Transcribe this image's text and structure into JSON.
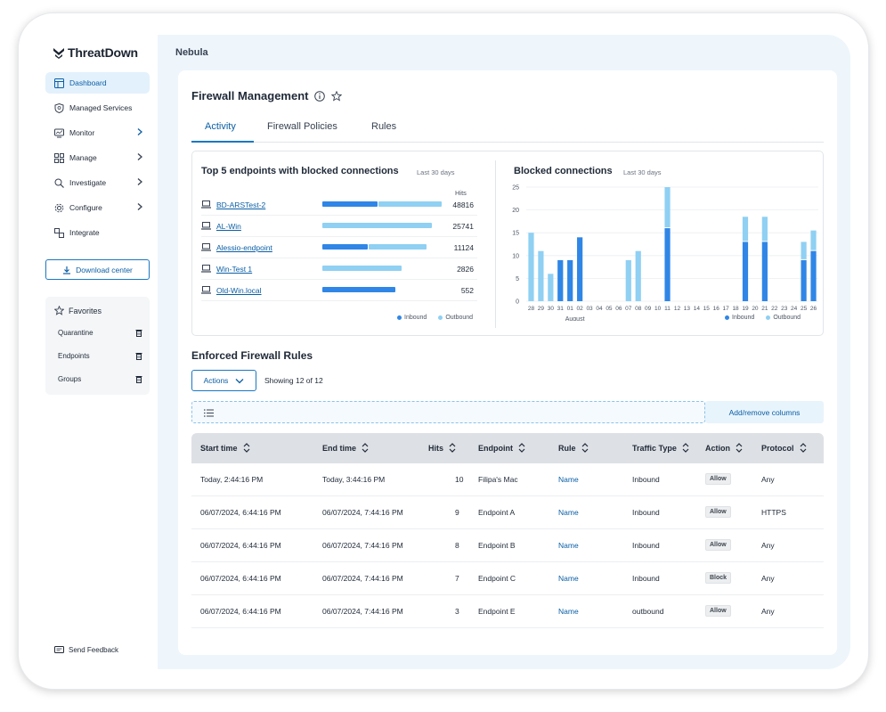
{
  "brand": {
    "name": "ThreatDown"
  },
  "sidebar": {
    "items": [
      {
        "label": "Dashboard",
        "icon": "dashboard-icon",
        "active": true,
        "chevron": false
      },
      {
        "label": "Managed Services",
        "icon": "shield-icon",
        "active": false,
        "chevron": false
      },
      {
        "label": "Monitor",
        "icon": "monitor-icon",
        "active": false,
        "chevron": true
      },
      {
        "label": "Manage",
        "icon": "grid-icon",
        "active": false,
        "chevron": true
      },
      {
        "label": "Investigate",
        "icon": "search-icon",
        "active": false,
        "chevron": true
      },
      {
        "label": "Configure",
        "icon": "gear-icon",
        "active": false,
        "chevron": true
      },
      {
        "label": "Integrate",
        "icon": "integrate-icon",
        "active": false,
        "chevron": false
      }
    ],
    "download_label": "Download center",
    "favorites": {
      "title": "Favorites",
      "items": [
        "Quarantine",
        "Endpoints",
        "Groups"
      ]
    },
    "feedback_label": "Send Feedback"
  },
  "header": {
    "breadcrumb": "Nebula"
  },
  "page": {
    "title": "Firewall Management",
    "tabs": [
      "Activity",
      "Firewall Policies",
      "Rules"
    ],
    "active_tab": "Activity"
  },
  "top_endpoints": {
    "title": "Top 5 endpoints with blocked connections",
    "subtitle": "Last 30 days",
    "hits_header": "Hits",
    "legend": [
      "Inbound",
      "Outbound"
    ]
  },
  "blocked": {
    "title": "Blocked connections",
    "subtitle": "Last 30 days",
    "month_label": "August",
    "legend": [
      "Inbound",
      "Outbound"
    ]
  },
  "colors": {
    "inbound": "#2f86e6",
    "outbound": "#8fd0f3",
    "accent": "#1a78c2"
  },
  "chart_data": [
    {
      "type": "bar",
      "title": "Top 5 endpoints with blocked connections",
      "subtitle": "Last 30 days",
      "categories": [
        "BD-ARSTest-2",
        "AL-Win",
        "Alessio-endpoint",
        "Win-Test 1",
        "Old-Win.local"
      ],
      "totals": [
        48816,
        25741,
        11124,
        2826,
        552
      ],
      "series": [
        {
          "name": "Inbound",
          "values": [
            0.45,
            0,
            0.37,
            0,
            0.6
          ]
        },
        {
          "name": "Outbound",
          "values": [
            0.52,
            0.9,
            0.48,
            0.65,
            0
          ]
        }
      ],
      "orientation": "horizontal",
      "legend": "bottom-right"
    },
    {
      "type": "bar",
      "title": "Blocked connections",
      "subtitle": "Last 30 days",
      "categories": [
        "28",
        "29",
        "30",
        "31",
        "01",
        "02",
        "03",
        "04",
        "05",
        "06",
        "07",
        "08",
        "09",
        "10",
        "11",
        "12",
        "13",
        "14",
        "15",
        "16",
        "17",
        "18",
        "19",
        "20",
        "21",
        "22",
        "23",
        "24",
        "25",
        "26"
      ],
      "stacked": true,
      "series": [
        {
          "name": "Inbound",
          "values": [
            0,
            0,
            0,
            9,
            9,
            14,
            0,
            0,
            0,
            0,
            0,
            0,
            0,
            0,
            16,
            0,
            0,
            0,
            0,
            0,
            0,
            0,
            13,
            0,
            13,
            0,
            0,
            0,
            9,
            11
          ]
        },
        {
          "name": "Outbound",
          "values": [
            15,
            11,
            6,
            0,
            0,
            0,
            0,
            0,
            0,
            0,
            9,
            11,
            0,
            0,
            9,
            0,
            0,
            0,
            0,
            0,
            0,
            0,
            5.5,
            0,
            5.5,
            0,
            0,
            0,
            4,
            4.5
          ]
        }
      ],
      "ylim": [
        0,
        25
      ],
      "yticks": [
        0,
        5,
        10,
        15,
        20,
        25
      ],
      "xlabel": "August",
      "grid": true,
      "legend": "bottom-right"
    }
  ],
  "rules": {
    "title": "Enforced Firewall Rules",
    "actions_label": "Actions",
    "showing": "Showing 12 of 12",
    "add_remove_columns": "Add/remove columns",
    "columns": [
      "Start time",
      "End time",
      "Hits",
      "Endpoint",
      "Rule",
      "Traffic Type",
      "Action",
      "Protocol"
    ],
    "rows": [
      {
        "start": "Today, 2:44:16 PM",
        "end": "Today, 3:44:16 PM",
        "hits": "10",
        "endpoint": "Filipa's Mac",
        "rule": "Name",
        "traffic": "Inbound",
        "action": "Allow",
        "protocol": "Any"
      },
      {
        "start": "06/07/2024, 6:44:16 PM",
        "end": "06/07/2024, 7:44:16 PM",
        "hits": "9",
        "endpoint": "Endpoint A",
        "rule": "Name",
        "traffic": "Inbound",
        "action": "Allow",
        "protocol": "HTTPS"
      },
      {
        "start": "06/07/2024, 6:44:16 PM",
        "end": "06/07/2024, 7:44:16 PM",
        "hits": "8",
        "endpoint": "Endpoint B",
        "rule": "Name",
        "traffic": "Inbound",
        "action": "Allow",
        "protocol": "Any"
      },
      {
        "start": "06/07/2024, 6:44:16 PM",
        "end": "06/07/2024, 7:44:16 PM",
        "hits": "7",
        "endpoint": "Endpoint C",
        "rule": "Name",
        "traffic": "Inbound",
        "action": "Block",
        "protocol": "Any"
      },
      {
        "start": "06/07/2024, 6:44:16 PM",
        "end": "06/07/2024, 7:44:16 PM",
        "hits": "3",
        "endpoint": "Endpoint E",
        "rule": "Name",
        "traffic": "outbound",
        "action": "Allow",
        "protocol": "Any"
      }
    ]
  }
}
